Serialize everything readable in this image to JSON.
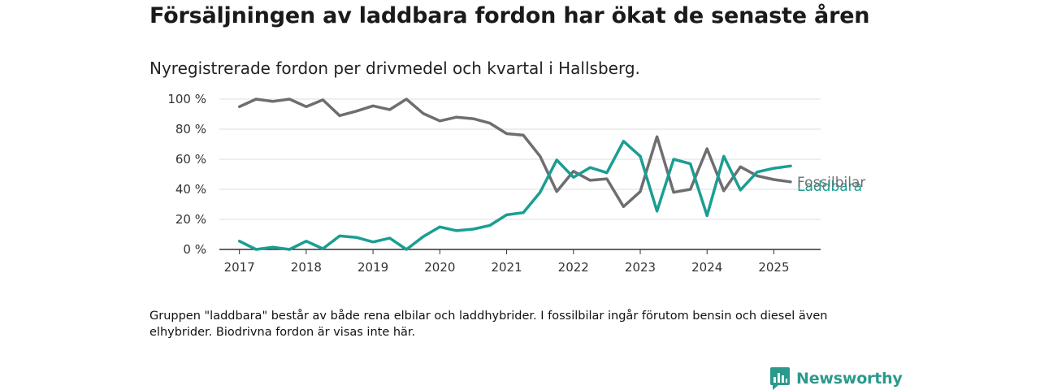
{
  "title": "Försäljningen av laddbara fordon har ökat de senaste åren",
  "subtitle": "Nyregistrerade fordon per drivmedel och kvartal i Hallsberg.",
  "footnote": "Gruppen \"laddbara\" består av både rena elbilar och laddhybrider. I fossilbilar ingår förutom bensin och diesel även elhybrider. Biodrivna fordon är visas inte här.",
  "brand": "Newsworthy",
  "chart_data": {
    "type": "line",
    "xlim": [
      2016.7,
      2025.7
    ],
    "ylim": [
      0,
      100
    ],
    "grid": true,
    "x_ticks": [
      2017,
      2018,
      2019,
      2020,
      2021,
      2022,
      2023,
      2024,
      2025
    ],
    "y_ticks": [
      0,
      20,
      40,
      60,
      80,
      100
    ],
    "y_tick_labels": [
      "0 %",
      "20 %",
      "40 %",
      "60 %",
      "80 %",
      "100 %"
    ],
    "x": [
      2017.0,
      2017.25,
      2017.5,
      2017.75,
      2018.0,
      2018.25,
      2018.5,
      2018.75,
      2019.0,
      2019.25,
      2019.5,
      2019.75,
      2020.0,
      2020.25,
      2020.5,
      2020.75,
      2021.0,
      2021.25,
      2021.5,
      2021.75,
      2022.0,
      2022.25,
      2022.5,
      2022.75,
      2023.0,
      2023.25,
      2023.5,
      2023.75,
      2024.0,
      2024.25,
      2024.5,
      2024.75,
      2025.0,
      2025.25
    ],
    "series": [
      {
        "name": "Fossilbilar",
        "color": "#6e6e72",
        "values": [
          95,
          100,
          98.5,
          100,
          95,
          99.5,
          89,
          92,
          95.5,
          93,
          100,
          90.5,
          85.5,
          88,
          87,
          84,
          77,
          76,
          62,
          38.5,
          52,
          46,
          47,
          28.5,
          38.5,
          75,
          38,
          40,
          67,
          39,
          55,
          49,
          46.5,
          45
        ]
      },
      {
        "name": "Laddbara",
        "color": "#1a9e93",
        "values": [
          5.5,
          0,
          1.5,
          0,
          5.5,
          0.5,
          9,
          8,
          5,
          7.5,
          0,
          8.5,
          15,
          12.5,
          13.5,
          16,
          23,
          24.5,
          38,
          59.5,
          48,
          54.5,
          51,
          72,
          62,
          25.5,
          60,
          57,
          22.5,
          62,
          39.5,
          51.5,
          54,
          55.5
        ]
      }
    ]
  }
}
